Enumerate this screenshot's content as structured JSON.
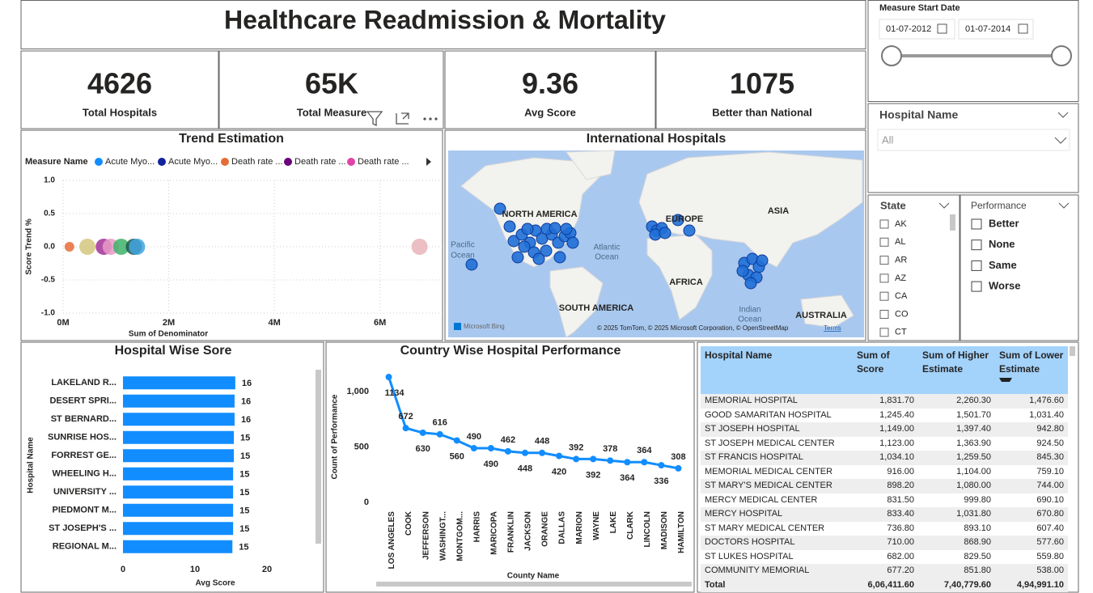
{
  "header": {
    "title": "Healthcare Readmission & Mortality"
  },
  "kpis": [
    {
      "value": 4626,
      "label": "Total Hospitals"
    },
    {
      "value": "65K",
      "label": "Total Measure"
    },
    {
      "value": 9.36,
      "label": "Avg Score"
    },
    {
      "value": 1075,
      "label": "Better than National"
    }
  ],
  "date_slicer": {
    "title": "Measure Start Date",
    "start": "01-07-2012",
    "end": "01-07-2014"
  },
  "hospital_slicer": {
    "title": "Hospital Name",
    "value": "All"
  },
  "state_slicer": {
    "title": "State",
    "items": [
      "AK",
      "AL",
      "AR",
      "AZ",
      "CA",
      "CO",
      "CT"
    ]
  },
  "performance_slicer": {
    "title": "Performance",
    "items": [
      "Better",
      "None",
      "Same",
      "Worse"
    ]
  },
  "map": {
    "title": "International Hospitals",
    "labels": [
      "NORTH AMERICA",
      "EUROPE",
      "ASIA",
      "AFRICA",
      "SOUTH AMERICA",
      "AUSTRALIA"
    ],
    "ocean_labels": [
      [
        "Pacific",
        "Ocean"
      ],
      [
        "Atlantic",
        "Ocean"
      ],
      [
        "Indian",
        "Ocean"
      ]
    ],
    "logo": "Microsoft Bing",
    "attribution": "© 2025 TomTom, © 2025 Microsoft Corporation, © OpenStreetMap",
    "terms": "Terms"
  },
  "chart_data": [
    {
      "type": "scatter",
      "title": "Trend Estimation",
      "legend_title": "Measure Name",
      "legend": [
        {
          "name": "Acute Myo...",
          "color": "#118dff"
        },
        {
          "name": "Acute Myo...",
          "color": "#12239e"
        },
        {
          "name": "Death rate ...",
          "color": "#e66c37"
        },
        {
          "name": "Death rate ...",
          "color": "#6b007b"
        },
        {
          "name": "Death rate ...",
          "color": "#e044a7"
        }
      ],
      "x": [
        0.12,
        0.46,
        0.77,
        0.9,
        1.1,
        1.34,
        1.4,
        6.75
      ],
      "values": [
        0,
        0,
        0,
        0,
        0,
        0,
        0,
        0
      ],
      "colors": [
        "#e66c37",
        "#d3c77e",
        "#a3309a",
        "#e89ac4",
        "#3fb26a",
        "#1d5a4c",
        "#41a4e0",
        "#e8b4b8"
      ],
      "xlim": [
        0,
        7.2
      ],
      "ylim": [
        -1,
        1
      ],
      "xticks": [
        {
          "value": 0,
          "label": "0M"
        },
        {
          "value": 2,
          "label": "2M"
        },
        {
          "value": 4,
          "label": "4M"
        },
        {
          "value": 6,
          "label": "6M"
        }
      ],
      "yticks": [
        {
          "value": -1,
          "label": "-1.0"
        },
        -0.5,
        {
          "value": 0,
          "label": "0.0"
        },
        0.5,
        {
          "value": 1,
          "label": "1.0"
        }
      ],
      "xlabel": "Sum of Denominator",
      "ylabel": "Score Trend %",
      "grid": true
    },
    {
      "type": "bar",
      "orientation": "horizontal",
      "title": "Hospital Wise Sore",
      "color": "#118dff",
      "categories": [
        "LAKELAND R...",
        "DESERT SPRI...",
        "ST BERNARD...",
        "SUNRISE HOS...",
        "FORREST GE...",
        "WHEELING H...",
        "UNIVERSITY ...",
        "PIEDMONT M...",
        "ST JOSEPH'S ...",
        "REGIONAL M..."
      ],
      "values": [
        15.6,
        15.5,
        15.5,
        15.4,
        15.4,
        15.3,
        15.3,
        15.3,
        15.3,
        15.2
      ],
      "value_labels": [
        "16",
        "16",
        "16",
        "15",
        "15",
        "15",
        "15",
        "15",
        "15",
        "15"
      ],
      "xlim": [
        0,
        20
      ],
      "xticks": [
        0,
        10,
        20
      ],
      "xlabel": "Avg Score",
      "ylabel": "Hospital Name"
    },
    {
      "type": "line",
      "title": "Country Wise Hospital Performance",
      "color": "#118dff",
      "categories": [
        "LOS ANGELES",
        "COOK",
        "JEFFERSON",
        "WASHINGT...",
        "MONTGOM...",
        "HARRIS",
        "MARICOPA",
        "FRANKLIN",
        "JACKSON",
        "ORANGE",
        "DALLAS",
        "MARION",
        "WAYNE",
        "LAKE",
        "CLARK",
        "LINCOLN",
        "MADISON",
        "HAMILTON"
      ],
      "values": [
        1134,
        672,
        630,
        616,
        560,
        490,
        490,
        462,
        448,
        448,
        420,
        392,
        392,
        378,
        364,
        364,
        336,
        308
      ],
      "ylim": [
        0,
        1200
      ],
      "yticks": [
        0,
        500,
        {
          "value": 1000,
          "label": "1,000"
        }
      ],
      "xlabel": "County Name",
      "ylabel": "Count of Performance"
    }
  ],
  "table": {
    "columns": [
      "Hospital Name",
      "Sum of Score",
      "Sum of Higher Estimate",
      "Sum of Lower Estimate"
    ],
    "rows": [
      [
        "MEMORIAL HOSPITAL",
        "1,831.70",
        "2,260.30",
        "1,476.60"
      ],
      [
        "GOOD SAMARITAN HOSPITAL",
        "1,245.40",
        "1,501.70",
        "1,031.40"
      ],
      [
        "ST JOSEPH HOSPITAL",
        "1,149.00",
        "1,397.40",
        "942.80"
      ],
      [
        "ST JOSEPH MEDICAL CENTER",
        "1,123.00",
        "1,363.90",
        "924.50"
      ],
      [
        "ST FRANCIS HOSPITAL",
        "1,034.10",
        "1,259.50",
        "845.30"
      ],
      [
        "MEMORIAL MEDICAL CENTER",
        "916.00",
        "1,104.00",
        "759.10"
      ],
      [
        "ST MARY'S MEDICAL CENTER",
        "898.20",
        "1,080.00",
        "744.00"
      ],
      [
        "MERCY MEDICAL CENTER",
        "831.50",
        "999.80",
        "690.10"
      ],
      [
        "MERCY HOSPITAL",
        "833.40",
        "1,031.80",
        "670.80"
      ],
      [
        "ST MARY MEDICAL CENTER",
        "736.80",
        "893.10",
        "607.40"
      ],
      [
        "DOCTORS HOSPITAL",
        "710.00",
        "868.90",
        "577.60"
      ],
      [
        "ST LUKES HOSPITAL",
        "682.00",
        "829.50",
        "559.80"
      ],
      [
        "COMMUNITY MEMORIAL",
        "677.20",
        "851.80",
        "538.00"
      ]
    ],
    "total": [
      "Total",
      "6,06,411.60",
      "7,40,779.60",
      "4,94,991.10"
    ]
  }
}
